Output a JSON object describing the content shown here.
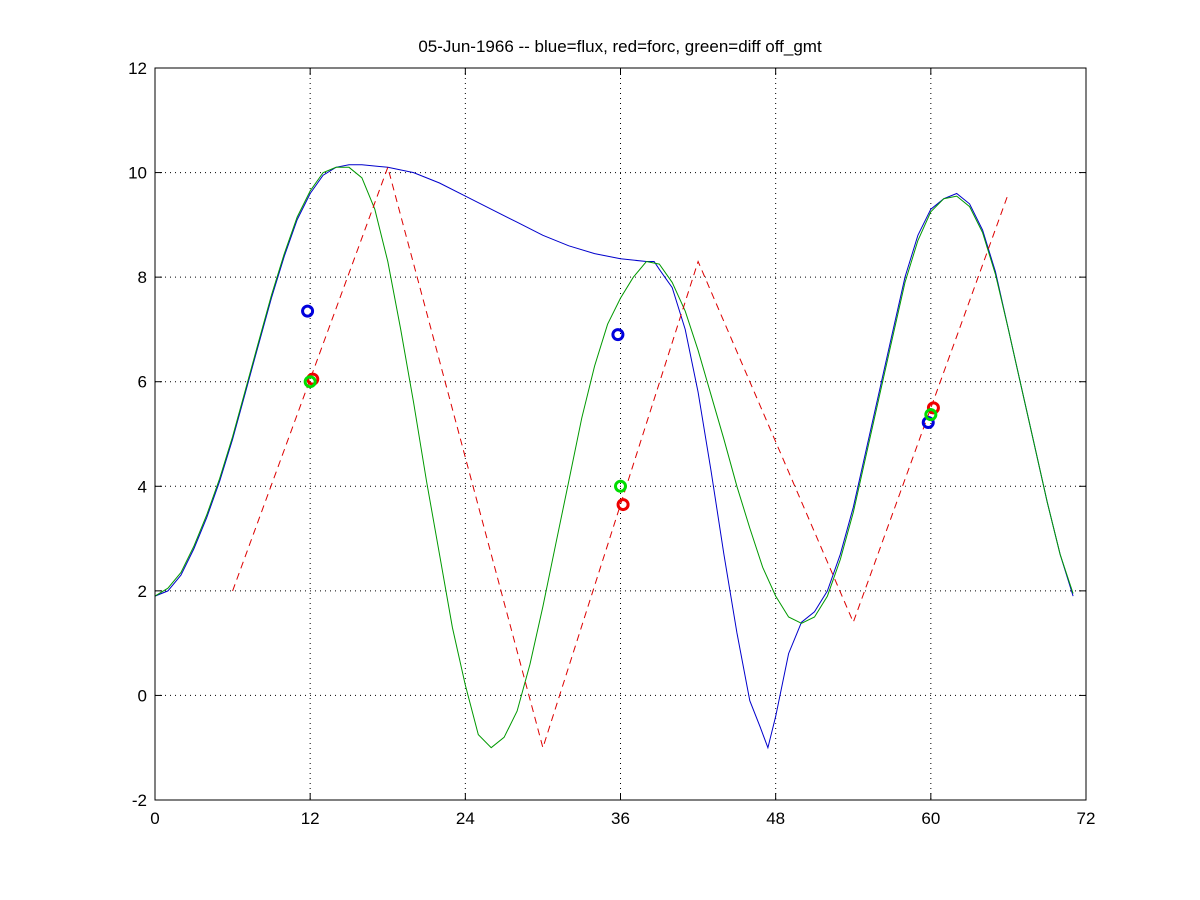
{
  "chart_data": {
    "type": "line",
    "title": "05-Jun-1966 -- blue=flux, red=forc, green=diff off_gmt",
    "xlabel": "",
    "ylabel": "",
    "xlim": [
      0,
      72
    ],
    "ylim": [
      -2,
      12
    ],
    "xticks": [
      0,
      12,
      24,
      36,
      48,
      60,
      72
    ],
    "yticks": [
      -2,
      0,
      2,
      4,
      6,
      8,
      10,
      12
    ],
    "grid": true,
    "series": [
      {
        "color": "#0000cc",
        "style": "solid",
        "points": [
          [
            0,
            1.9
          ],
          [
            1,
            2.0
          ],
          [
            2,
            2.3
          ],
          [
            3,
            2.8
          ],
          [
            4,
            3.4
          ],
          [
            5,
            4.1
          ],
          [
            6,
            4.9
          ],
          [
            7,
            5.8
          ],
          [
            8,
            6.7
          ],
          [
            9,
            7.6
          ],
          [
            10,
            8.4
          ],
          [
            11,
            9.1
          ],
          [
            12,
            9.6
          ],
          [
            13,
            9.95
          ],
          [
            14,
            10.1
          ],
          [
            15,
            10.15
          ],
          [
            16,
            10.15
          ],
          [
            18,
            10.1
          ],
          [
            20,
            10.0
          ],
          [
            22,
            9.8
          ],
          [
            24,
            9.55
          ],
          [
            26,
            9.3
          ],
          [
            28,
            9.05
          ],
          [
            30,
            8.8
          ],
          [
            32,
            8.6
          ],
          [
            34,
            8.45
          ],
          [
            36,
            8.35
          ],
          [
            38,
            8.3
          ],
          [
            38.6,
            8.3
          ],
          [
            39,
            8.15
          ],
          [
            40,
            7.8
          ],
          [
            41,
            7.0
          ],
          [
            42,
            5.8
          ],
          [
            43,
            4.3
          ],
          [
            44,
            2.7
          ],
          [
            45,
            1.2
          ],
          [
            46,
            -0.1
          ],
          [
            46.8,
            -0.6
          ],
          [
            47.4,
            -1.0
          ],
          [
            48,
            -0.4
          ],
          [
            49,
            0.8
          ],
          [
            50,
            1.4
          ],
          [
            51,
            1.6
          ],
          [
            52,
            2.0
          ],
          [
            53,
            2.7
          ],
          [
            54,
            3.6
          ],
          [
            55,
            4.7
          ],
          [
            56,
            5.8
          ],
          [
            57,
            6.9
          ],
          [
            58,
            8.0
          ],
          [
            59,
            8.8
          ],
          [
            60,
            9.3
          ],
          [
            61,
            9.5
          ],
          [
            62,
            9.6
          ],
          [
            63,
            9.4
          ],
          [
            64,
            8.9
          ],
          [
            65,
            8.1
          ],
          [
            66,
            7.0
          ],
          [
            67,
            5.9
          ],
          [
            68,
            4.8
          ],
          [
            69,
            3.7
          ],
          [
            70,
            2.7
          ],
          [
            71,
            1.9
          ]
        ]
      },
      {
        "color": "#009900",
        "style": "solid",
        "points": [
          [
            0,
            1.9
          ],
          [
            1,
            2.05
          ],
          [
            2,
            2.35
          ],
          [
            3,
            2.85
          ],
          [
            4,
            3.45
          ],
          [
            5,
            4.15
          ],
          [
            6,
            4.95
          ],
          [
            7,
            5.85
          ],
          [
            8,
            6.75
          ],
          [
            9,
            7.65
          ],
          [
            10,
            8.45
          ],
          [
            11,
            9.15
          ],
          [
            12,
            9.65
          ],
          [
            13,
            10.0
          ],
          [
            14,
            10.1
          ],
          [
            15,
            10.1
          ],
          [
            16,
            9.9
          ],
          [
            17,
            9.3
          ],
          [
            18,
            8.3
          ],
          [
            19,
            7.0
          ],
          [
            20,
            5.6
          ],
          [
            21,
            4.1
          ],
          [
            22,
            2.7
          ],
          [
            23,
            1.3
          ],
          [
            24,
            0.2
          ],
          [
            25,
            -0.75
          ],
          [
            26,
            -1.0
          ],
          [
            27,
            -0.8
          ],
          [
            28,
            -0.3
          ],
          [
            29,
            0.6
          ],
          [
            30,
            1.7
          ],
          [
            31,
            2.9
          ],
          [
            32,
            4.1
          ],
          [
            33,
            5.3
          ],
          [
            34,
            6.3
          ],
          [
            35,
            7.1
          ],
          [
            36,
            7.6
          ],
          [
            37,
            8.0
          ],
          [
            38,
            8.3
          ],
          [
            39,
            8.25
          ],
          [
            40,
            7.9
          ],
          [
            41,
            7.35
          ],
          [
            42,
            6.6
          ],
          [
            43,
            5.75
          ],
          [
            44,
            4.9
          ],
          [
            45,
            4.0
          ],
          [
            46,
            3.2
          ],
          [
            47,
            2.45
          ],
          [
            48,
            1.9
          ],
          [
            49,
            1.5
          ],
          [
            50,
            1.38
          ],
          [
            51,
            1.5
          ],
          [
            52,
            1.9
          ],
          [
            53,
            2.6
          ],
          [
            54,
            3.5
          ],
          [
            55,
            4.6
          ],
          [
            56,
            5.7
          ],
          [
            57,
            6.8
          ],
          [
            58,
            7.9
          ],
          [
            59,
            8.7
          ],
          [
            60,
            9.25
          ],
          [
            61,
            9.5
          ],
          [
            62,
            9.55
          ],
          [
            63,
            9.35
          ],
          [
            64,
            8.85
          ],
          [
            65,
            8.05
          ],
          [
            66,
            7.0
          ],
          [
            67,
            5.9
          ],
          [
            68,
            4.8
          ],
          [
            69,
            3.7
          ],
          [
            70,
            2.7
          ],
          [
            71,
            1.95
          ]
        ]
      },
      {
        "color": "#dd0000",
        "style": "dashed",
        "points": [
          [
            6,
            2.0
          ],
          [
            18,
            10.1
          ],
          [
            30,
            -1.0
          ],
          [
            42,
            8.3
          ],
          [
            54,
            1.4
          ],
          [
            66,
            9.6
          ]
        ]
      }
    ],
    "markers": [
      {
        "x": 11.8,
        "y": 7.35,
        "color": "#0000dd"
      },
      {
        "x": 12.2,
        "y": 6.05,
        "color": "#ee0000"
      },
      {
        "x": 12.0,
        "y": 6.0,
        "color": "#00dd00"
      },
      {
        "x": 35.8,
        "y": 6.9,
        "color": "#0000dd"
      },
      {
        "x": 36.2,
        "y": 3.65,
        "color": "#ee0000"
      },
      {
        "x": 36.0,
        "y": 4.0,
        "color": "#00dd00"
      },
      {
        "x": 59.8,
        "y": 5.22,
        "color": "#0000dd"
      },
      {
        "x": 60.2,
        "y": 5.5,
        "color": "#ee0000"
      },
      {
        "x": 60.0,
        "y": 5.37,
        "color": "#00dd00"
      }
    ]
  }
}
